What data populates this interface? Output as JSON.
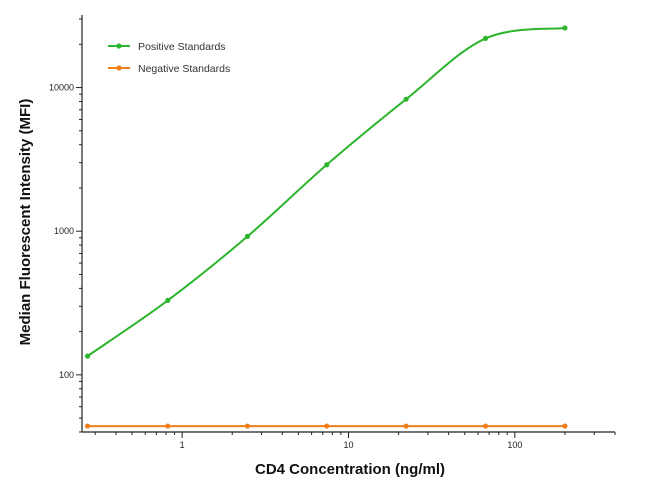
{
  "chart_data": {
    "type": "line",
    "xlabel": "CD4 Concentration (ng/ml)",
    "ylabel": "Median  Fluorescent Intensity  (MFI)",
    "x_scale": "log",
    "y_scale": "log",
    "xlim": [
      0.25,
      400
    ],
    "ylim": [
      40,
      32000
    ],
    "x_ticks": [
      1,
      10,
      100
    ],
    "x_tick_labels": [
      "1",
      "10",
      "100"
    ],
    "y_ticks": [
      100,
      1000,
      10000
    ],
    "y_tick_labels": [
      "100",
      "1000",
      "10000"
    ],
    "grid": false,
    "legend_position": "top-left",
    "series": [
      {
        "name": "Positive Standards",
        "color": "#2db52d",
        "x": [
          0.27,
          0.82,
          2.47,
          7.4,
          22.2,
          66.7,
          200
        ],
        "y": [
          135,
          330,
          920,
          2900,
          8300,
          22000,
          26000
        ]
      },
      {
        "name": "Negative Standards",
        "color": "#f07f1a",
        "x": [
          0.27,
          0.82,
          2.47,
          7.4,
          22.2,
          66.7,
          200
        ],
        "y": [
          44,
          44,
          44,
          44,
          44,
          44,
          44
        ]
      }
    ]
  }
}
